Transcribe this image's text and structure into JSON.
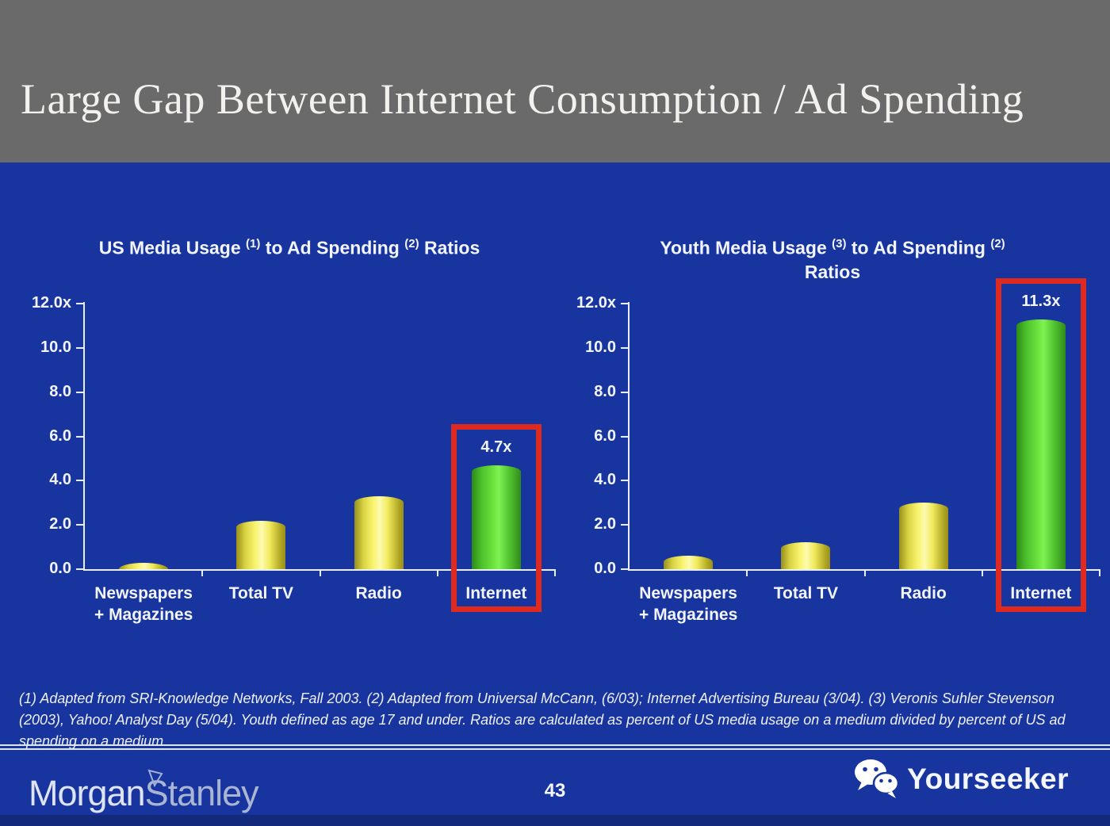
{
  "header": {
    "title": "Large Gap Between Internet Consumption / Ad Spending"
  },
  "charts": [
    {
      "title": {
        "t1": "US Media Usage",
        "s1": "(1)",
        "t2": "to Ad Spending",
        "s2": "(2)",
        "t3": "Ratios"
      }
    },
    {
      "title": {
        "t1": "Youth Media Usage",
        "s1": "(3)",
        "t2": "to Ad Spending",
        "s2": "(2)",
        "t3": "Ratios"
      }
    }
  ],
  "chart_data": [
    {
      "type": "bar",
      "title": "US Media Usage (1) to Ad Spending (2) Ratios",
      "categories": [
        "Newspapers + Magazines",
        "Total TV",
        "Radio",
        "Internet"
      ],
      "categories_display": [
        "Newspapers\n+ Magazines",
        "Total TV",
        "Radio",
        "Internet"
      ],
      "values": [
        0.3,
        2.2,
        3.3,
        4.7
      ],
      "data_labels": [
        "",
        "",
        "",
        "4.7x"
      ],
      "bar_styles": [
        "yellow",
        "yellow",
        "yellow",
        "green"
      ],
      "highlighted_category": "Internet",
      "ylim": [
        0,
        12
      ],
      "ytick_labels": [
        "12.0x",
        "10.0",
        "8.0",
        "6.0",
        "4.0",
        "2.0",
        "0.0"
      ],
      "xlabel": "",
      "ylabel": "",
      "grid": false,
      "legend": "none"
    },
    {
      "type": "bar",
      "title": "Youth Media Usage (3) to Ad Spending (2) Ratios",
      "categories": [
        "Newspapers + Magazines",
        "Total TV",
        "Radio",
        "Internet"
      ],
      "categories_display": [
        "Newspapers\n+ Magazines",
        "Total TV",
        "Radio",
        "Internet"
      ],
      "values": [
        0.6,
        1.2,
        3.0,
        11.3
      ],
      "data_labels": [
        "",
        "",
        "",
        "11.3x"
      ],
      "bar_styles": [
        "yellow",
        "yellow",
        "yellow",
        "green"
      ],
      "highlighted_category": "Internet",
      "ylim": [
        0,
        12
      ],
      "ytick_labels": [
        "12.0x",
        "10.0",
        "8.0",
        "6.0",
        "4.0",
        "2.0",
        "0.0"
      ],
      "xlabel": "",
      "ylabel": "",
      "grid": false,
      "legend": "none"
    }
  ],
  "footnote": "(1) Adapted from SRI-Knowledge Networks, Fall 2003.  (2) Adapted from Universal McCann, (6/03); Internet Advertising Bureau (3/04). (3) Veronis Suhler Stevenson (2003), Yahoo! Analyst Day (5/04).  Youth defined as age 17 and under.  Ratios are calculated as percent of US media usage on a medium divided by percent of US ad spending on a medium.",
  "footer": {
    "brand": {
      "part1": "Morgan",
      "part2": "Stanley"
    },
    "page_number": "43",
    "watermark": "Yourseeker"
  },
  "colors": {
    "background_blue": "#18349e",
    "header_gray": "#6a6a6a",
    "highlight_red": "#de2a1f",
    "axis_white": "#e9eefb",
    "bar_yellow": "#f8f36c",
    "bar_green": "#6ee53f",
    "footer_strip_blue": "#13297b"
  }
}
